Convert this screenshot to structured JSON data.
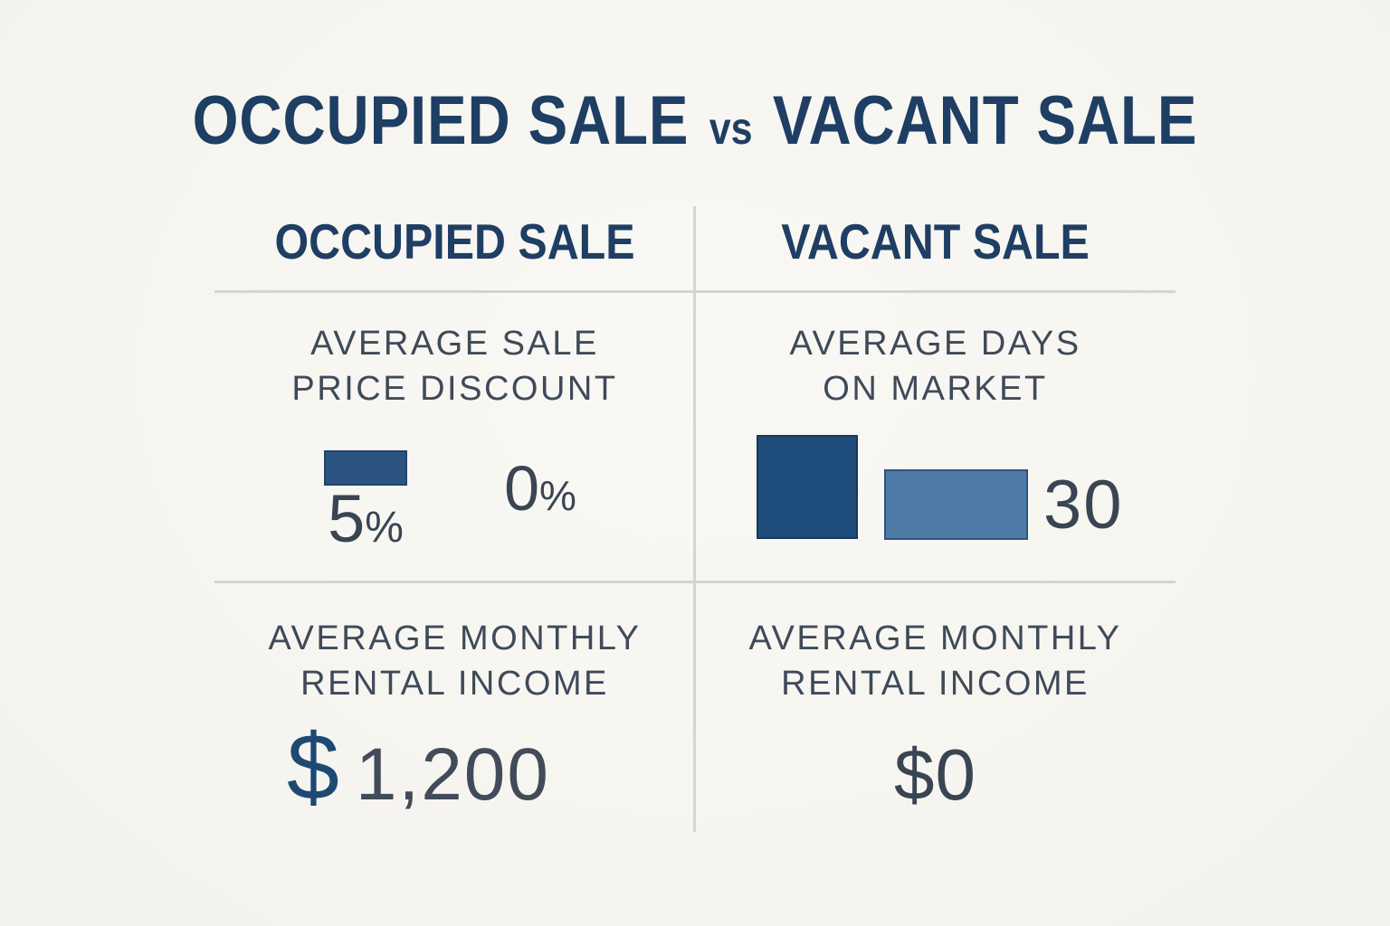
{
  "title": {
    "left": "OCCUPIED SALE",
    "separator": "vs",
    "right": "VACANT SALE"
  },
  "columns": {
    "occupied": {
      "header": "OCCUPIED SALE"
    },
    "vacant": {
      "header": "VACANT SALE"
    }
  },
  "discount_cell": {
    "label_line1": "AVERAGE SALE",
    "label_line2": "PRICE DISCOUNT",
    "occupied_number": "5",
    "occupied_unit": "%",
    "vacant_number": "0",
    "vacant_unit": "%"
  },
  "days_cell": {
    "label_line1": "AVERAGE DAYS",
    "label_line2": "ON MARKET",
    "value": "30"
  },
  "occupied_income_cell": {
    "label_line1": "AVERAGE MONTHLY",
    "label_line2": "RENTAL INCOME",
    "currency": "$",
    "value": "1,200"
  },
  "vacant_income_cell": {
    "label_line1": "AVERAGE MONTHLY",
    "label_line2": "RENTAL INCOME",
    "value": "$0"
  },
  "colors": {
    "background": "#f6f4ef",
    "navy_text": "#1e3e63",
    "label_text": "#3f4a59",
    "number_text": "#3a4553",
    "dollar_navy": "#1d4a73",
    "bar_discount": "#2c5480",
    "bar_days_dark": "#1e4d7b",
    "bar_days_light": "#4d7ba6",
    "grid_line": "#d5d4d0"
  },
  "chart_data": [
    {
      "type": "bar",
      "title": "AVERAGE SALE PRICE DISCOUNT",
      "categories": [
        "OCCUPIED SALE",
        "VACANT SALE"
      ],
      "values": [
        5,
        0
      ],
      "unit": "%",
      "data_labels": [
        "5%",
        "0%"
      ],
      "layout": "single small bar drawn for 5%; no bar for 0%"
    },
    {
      "type": "bar",
      "title": "AVERAGE DAYS ON MARKET",
      "categories": [
        "OCCUPIED SALE",
        "VACANT SALE"
      ],
      "values": [
        null,
        30
      ],
      "unit": "days",
      "data_labels": [
        "",
        "30"
      ],
      "layout": "two bars: tall dark bar, shorter light bar; only value shown is 30"
    },
    {
      "type": "table",
      "title": "AVERAGE MONTHLY RENTAL INCOME",
      "categories": [
        "OCCUPIED SALE",
        "VACANT SALE"
      ],
      "values": [
        "$1,200",
        "$0"
      ]
    }
  ]
}
